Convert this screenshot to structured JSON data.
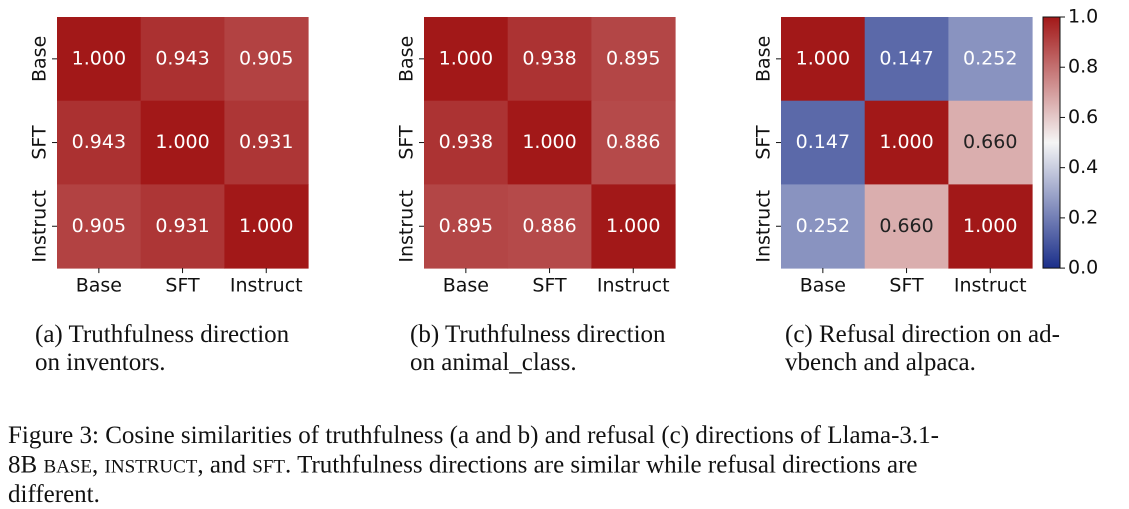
{
  "chart_data": [
    {
      "type": "heatmap",
      "categories": [
        "Base",
        "SFT",
        "Instruct"
      ],
      "vlim": [
        0,
        1
      ],
      "values": [
        [
          1.0,
          0.943,
          0.905
        ],
        [
          0.943,
          1.0,
          0.931
        ],
        [
          0.905,
          0.931,
          1.0
        ]
      ],
      "value_labels": [
        [
          "1.000",
          "0.943",
          "0.905"
        ],
        [
          "0.943",
          "1.000",
          "0.931"
        ],
        [
          "0.905",
          "0.931",
          "1.000"
        ]
      ],
      "caption": [
        "(a) Truthfulness direction",
        "on inventors."
      ]
    },
    {
      "type": "heatmap",
      "categories": [
        "Base",
        "SFT",
        "Instruct"
      ],
      "vlim": [
        0,
        1
      ],
      "values": [
        [
          1.0,
          0.938,
          0.895
        ],
        [
          0.938,
          1.0,
          0.886
        ],
        [
          0.895,
          0.886,
          1.0
        ]
      ],
      "value_labels": [
        [
          "1.000",
          "0.938",
          "0.895"
        ],
        [
          "0.938",
          "1.000",
          "0.886"
        ],
        [
          "0.895",
          "0.886",
          "1.000"
        ]
      ],
      "caption": [
        "(b) Truthfulness direction",
        "on animal_class."
      ]
    },
    {
      "type": "heatmap",
      "categories": [
        "Base",
        "SFT",
        "Instruct"
      ],
      "vlim": [
        0,
        1
      ],
      "values": [
        [
          1.0,
          0.147,
          0.252
        ],
        [
          0.147,
          1.0,
          0.66
        ],
        [
          0.252,
          0.66,
          1.0
        ]
      ],
      "value_labels": [
        [
          "1.000",
          "0.147",
          "0.252"
        ],
        [
          "0.147",
          "1.000",
          "0.660"
        ],
        [
          "0.252",
          "0.660",
          "1.000"
        ]
      ],
      "caption": [
        "(c) Refusal direction on ad-",
        "vbench and alpaca."
      ],
      "colorbar": {
        "ticks": [
          {
            "value": 0,
            "label": "0.0"
          },
          0.2,
          0.4,
          0.6,
          0.8,
          {
            "value": 1,
            "label": "1.0"
          }
        ]
      }
    }
  ],
  "caption": [
    [
      "Figure 3: Cosine similarities of truthfulness (a and b) and refusal (c) directions of Llama-3.1-"
    ],
    [
      "8B ",
      "BASE",
      ", ",
      "INSTRUCT",
      ", and ",
      "SFT",
      ". Truthfulness directions are similar while refusal directions are"
    ],
    [
      "different."
    ]
  ]
}
